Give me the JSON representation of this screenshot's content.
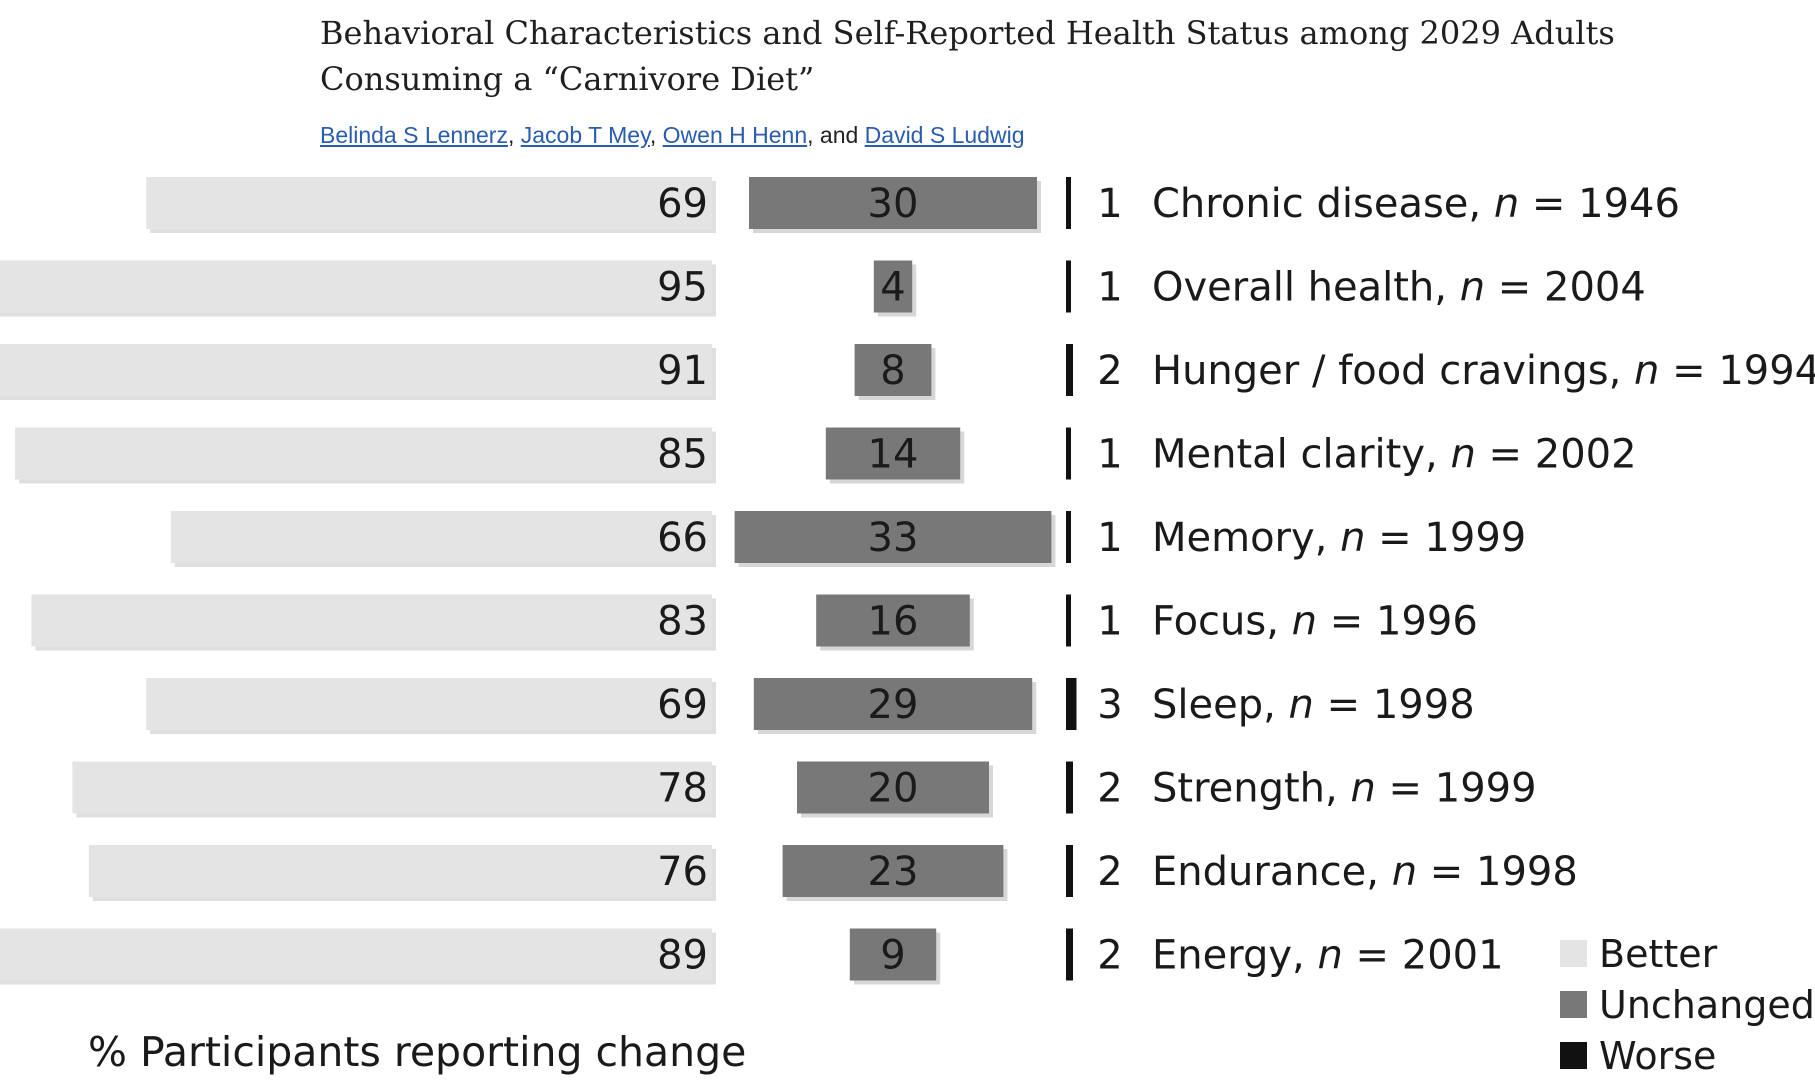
{
  "article": {
    "title": "Behavioral Characteristics and Self-Reported Health Status among 2029 Adults Consuming a “Carnivore Diet”",
    "authors": [
      "Belinda S Lennerz",
      "Jacob T Mey",
      "Owen H Henn",
      "David S Ludwig"
    ],
    "separator": ",",
    "and_word": "and"
  },
  "colors": {
    "better": "#e4e4e4",
    "unchanged": "#787878",
    "worse": "#111111",
    "link": "#2a5db0"
  },
  "chart_data": {
    "type": "bar",
    "orientation": "horizontal",
    "stacked": "diverging",
    "xlabel": "% Participants reporting change",
    "legend_position": "bottom-right",
    "series": [
      {
        "name": "Better",
        "values": [
          69,
          95,
          91,
          85,
          66,
          83,
          69,
          78,
          76,
          89
        ]
      },
      {
        "name": "Unchanged",
        "values": [
          30,
          4,
          8,
          14,
          33,
          16,
          29,
          20,
          23,
          9
        ]
      },
      {
        "name": "Worse",
        "values": [
          1,
          1,
          2,
          1,
          1,
          1,
          3,
          2,
          2,
          2
        ]
      }
    ],
    "categories": [
      {
        "label": "Chronic disease, ",
        "n_label": "n",
        "n_value": " = 1946"
      },
      {
        "label": "Overall health, ",
        "n_label": "n",
        "n_value": " = 2004"
      },
      {
        "label": "Hunger / food cravings, ",
        "n_label": "n",
        "n_value": " = 1994"
      },
      {
        "label": "Mental clarity, ",
        "n_label": "n",
        "n_value": " = 2002"
      },
      {
        "label": "Memory, ",
        "n_label": "n",
        "n_value": " = 1999"
      },
      {
        "label": "Focus, ",
        "n_label": "n",
        "n_value": " = 1996"
      },
      {
        "label": "Sleep, ",
        "n_label": "n",
        "n_value": " = 1998"
      },
      {
        "label": "Strength, ",
        "n_label": "n",
        "n_value": " = 1999"
      },
      {
        "label": "Endurance, ",
        "n_label": "n",
        "n_value": " = 1998"
      },
      {
        "label": "Energy, ",
        "n_label": "n",
        "n_value": " = 2001"
      }
    ]
  }
}
